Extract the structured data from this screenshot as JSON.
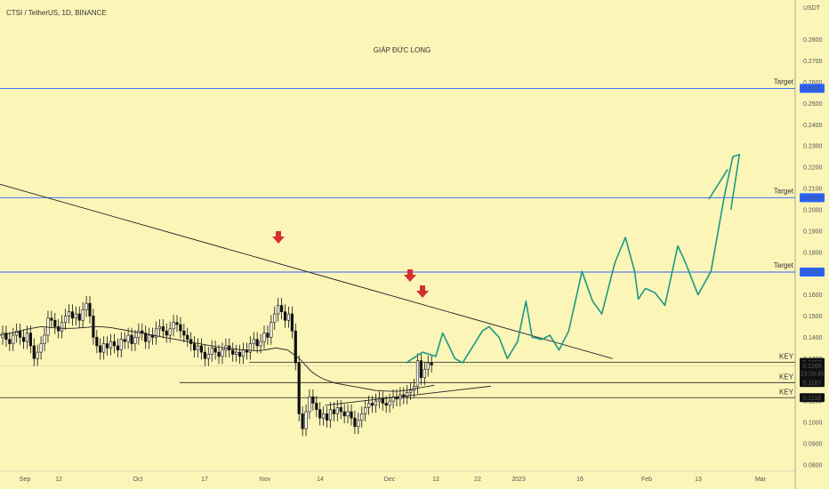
{
  "header": {
    "symbol_line": "CTSI / TetherUS, 1D, BINANCE"
  },
  "title": "GIÁP ĐỨC LONG",
  "currency": "USDT",
  "countdown": "23:39:45",
  "colors": {
    "background": "#fcf5b8",
    "up_candle": "#ffffff",
    "down_candle": "#111111",
    "target_line": "#2962ff",
    "projection": "#1a9a84",
    "arrow": "#d32f2f",
    "title": "#e0314b"
  },
  "chart_data": {
    "type": "candlestick",
    "y_axis": {
      "ticks": [
        "0.2800",
        "0.2700",
        "0.2600",
        "0.2500",
        "0.2400",
        "0.2300",
        "0.2200",
        "0.2100",
        "0.2000",
        "0.1900",
        "0.1800",
        "0.1700",
        "0.1600",
        "0.1500",
        "0.1400",
        "0.1300",
        "0.1200",
        "0.1100",
        "0.1000",
        "0.0900",
        "0.0800"
      ],
      "range": [
        0.077,
        0.292
      ]
    },
    "x_axis": {
      "ticks": [
        "Sep",
        "12",
        "Oct",
        "17",
        "Nov",
        "14",
        "Dec",
        "12",
        "22",
        "2023",
        "16",
        "Feb",
        "13",
        "Mar"
      ]
    },
    "targets": [
      {
        "label": "Target",
        "value": 0.2571,
        "value_text": "0.2571"
      },
      {
        "label": "Target",
        "value": 0.2057,
        "value_text": "0.2057"
      },
      {
        "label": "Target",
        "value": 0.1707,
        "value_text": "0.1707"
      }
    ],
    "key_levels": [
      {
        "label": "KEY",
        "value": 0.1282,
        "value_text": "0.1282"
      },
      {
        "label": "KEY",
        "value": 0.1187,
        "value_text": "0.1187"
      },
      {
        "label": "KEY",
        "value": 0.1116,
        "value_text": "0.1116"
      }
    ],
    "current_price": {
      "value": 0.1265,
      "value_text": "0.1265"
    },
    "candles_close": [
      0.142,
      0.139,
      0.137,
      0.141,
      0.143,
      0.14,
      0.138,
      0.142,
      0.136,
      0.13,
      0.133,
      0.137,
      0.141,
      0.149,
      0.148,
      0.145,
      0.143,
      0.147,
      0.15,
      0.152,
      0.149,
      0.151,
      0.148,
      0.153,
      0.156,
      0.15,
      0.14,
      0.136,
      0.133,
      0.137,
      0.135,
      0.138,
      0.136,
      0.134,
      0.139,
      0.138,
      0.141,
      0.137,
      0.14,
      0.143,
      0.142,
      0.138,
      0.141,
      0.14,
      0.144,
      0.145,
      0.143,
      0.141,
      0.144,
      0.147,
      0.146,
      0.143,
      0.141,
      0.139,
      0.137,
      0.134,
      0.136,
      0.133,
      0.13,
      0.132,
      0.135,
      0.133,
      0.131,
      0.134,
      0.136,
      0.134,
      0.132,
      0.133,
      0.131,
      0.134,
      0.133,
      0.137,
      0.139,
      0.136,
      0.138,
      0.142,
      0.14,
      0.147,
      0.151,
      0.155,
      0.152,
      0.148,
      0.151,
      0.143,
      0.128,
      0.104,
      0.097,
      0.105,
      0.112,
      0.109,
      0.106,
      0.102,
      0.104,
      0.101,
      0.106,
      0.104,
      0.107,
      0.105,
      0.103,
      0.105,
      0.102,
      0.098,
      0.101,
      0.104,
      0.107,
      0.109,
      0.108,
      0.11,
      0.111,
      0.109,
      0.108,
      0.11,
      0.112,
      0.111,
      0.113,
      0.112,
      0.114,
      0.115,
      0.117,
      0.129,
      0.121,
      0.125,
      0.128,
      0.127
    ],
    "ma_line": [
      0.141,
      0.1415,
      0.142,
      0.1425,
      0.1435,
      0.144,
      0.1445,
      0.145,
      0.1448,
      0.1445,
      0.1443,
      0.1442,
      0.1442,
      0.1443,
      0.1445,
      0.1447,
      0.145,
      0.145,
      0.1448,
      0.1445,
      0.144,
      0.1435,
      0.143,
      0.1425,
      0.142,
      0.1415,
      0.141,
      0.1405,
      0.14,
      0.1395,
      0.139,
      0.1385,
      0.138,
      0.1375,
      0.137,
      0.1365,
      0.136,
      0.1355,
      0.135,
      0.1348,
      0.1345,
      0.1342,
      0.134,
      0.1338,
      0.1337,
      0.134,
      0.1345,
      0.135,
      0.1345,
      0.134,
      0.132,
      0.13,
      0.127,
      0.124,
      0.122,
      0.1205,
      0.1195,
      0.1185,
      0.118,
      0.1175,
      0.117,
      0.1165,
      0.116,
      0.1155,
      0.115,
      0.1148,
      0.1147,
      0.1146,
      0.1147,
      0.115,
      0.1155,
      0.116,
      0.1165,
      0.117,
      0.1175
    ],
    "projection_path": [
      [
        0.1225,
        0.128
      ],
      [
        0.1275,
        0.133
      ],
      [
        0.1314,
        0.131
      ],
      [
        0.1335,
        0.142
      ],
      [
        0.1372,
        0.13
      ],
      [
        0.1395,
        0.128
      ],
      [
        0.1455,
        0.143
      ],
      [
        0.1475,
        0.145
      ],
      [
        0.1505,
        0.14
      ],
      [
        0.153,
        0.13
      ],
      [
        0.1561,
        0.138
      ],
      [
        0.1586,
        0.157
      ],
      [
        0.1605,
        0.14
      ],
      [
        0.1635,
        0.139
      ],
      [
        0.1658,
        0.141
      ],
      [
        0.1686,
        0.134
      ],
      [
        0.1715,
        0.143
      ],
      [
        0.1755,
        0.171
      ],
      [
        0.1787,
        0.157
      ],
      [
        0.1815,
        0.151
      ],
      [
        0.1854,
        0.175
      ],
      [
        0.1886,
        0.187
      ],
      [
        0.1914,
        0.171
      ],
      [
        0.1925,
        0.158
      ],
      [
        0.1946,
        0.163
      ],
      [
        0.1975,
        0.161
      ],
      [
        0.2005,
        0.155
      ],
      [
        0.2044,
        0.183
      ],
      [
        0.2065,
        0.176
      ],
      [
        0.2105,
        0.16
      ],
      [
        0.2144,
        0.171
      ],
      [
        0.2185,
        0.207
      ],
      [
        0.221,
        0.225
      ],
      [
        0.223,
        0.226
      ],
      [
        0.2204,
        0.2
      ]
    ],
    "down_trendline": [
      [
        0.0,
        0.212
      ],
      [
        0.2353,
        0.13
      ]
    ],
    "up_trendline": [
      [
        0.1508,
        0.108
      ],
      [
        0.191,
        0.117
      ]
    ],
    "resistance_arrows": [
      0.1035,
      0.1561,
      0.1629
    ]
  }
}
